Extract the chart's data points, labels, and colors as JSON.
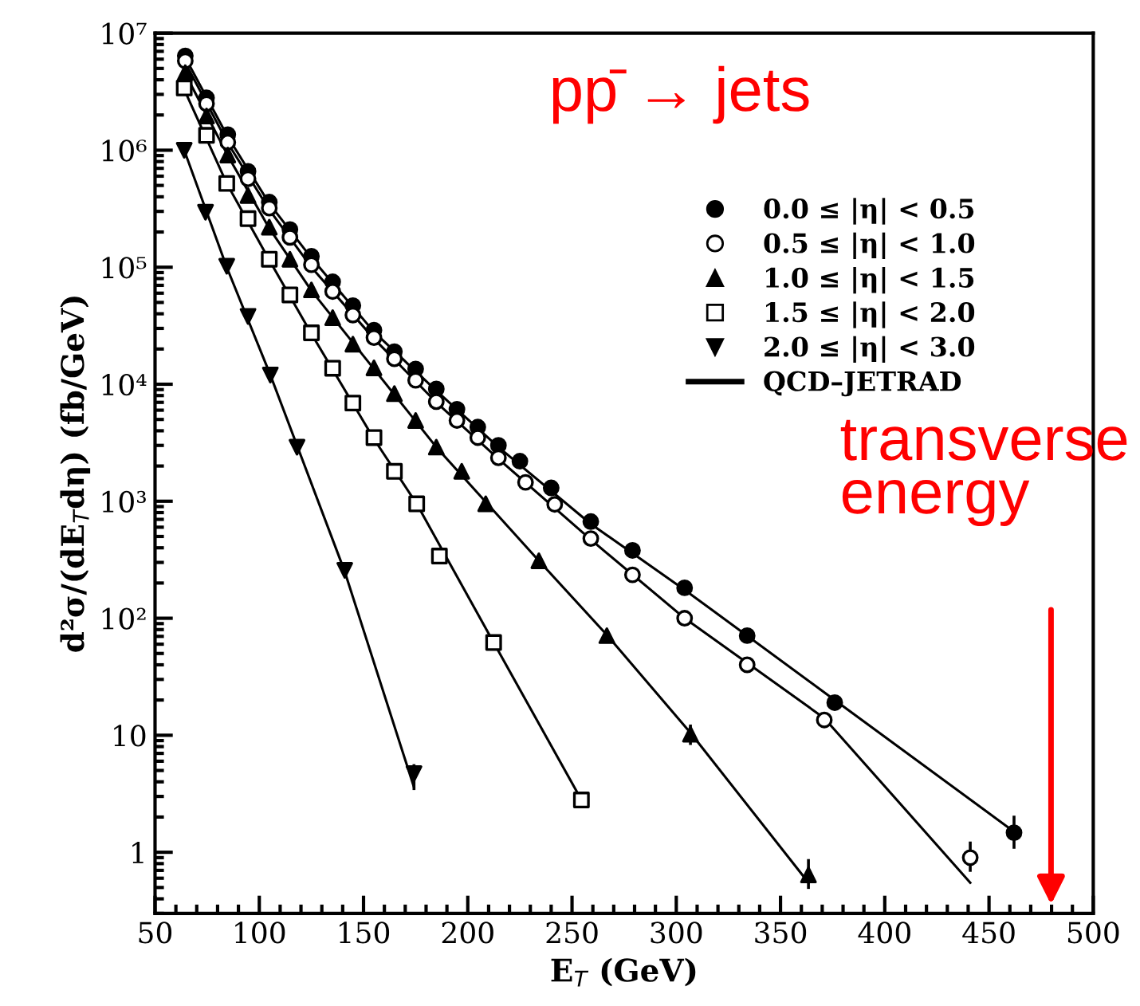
{
  "chart_data": {
    "type": "scatter",
    "xlabel": "E$_{T}$ (GeV)",
    "ylabel": "d²σ/(dE$_{T}$dη) (fb/GeV)",
    "log": "y",
    "grid": false,
    "legend": "top right",
    "xlim": [
      50,
      500
    ],
    "xticks": [
      50,
      100,
      150,
      200,
      250,
      300,
      350,
      400,
      450,
      500
    ],
    "ylim": [
      0.3,
      10000000
    ],
    "yticks": [
      1,
      10,
      {
        "value": 100,
        "label": "10²"
      },
      {
        "value": 1000,
        "label": "10³"
      },
      {
        "value": 10000,
        "label": "10⁴"
      },
      {
        "value": 100000,
        "label": "10⁵"
      },
      {
        "value": 1000000,
        "label": "10⁶"
      },
      {
        "value": 10000000,
        "label": "10⁷"
      }
    ],
    "annotations": [
      "pp̄ → jets",
      "transverse energy"
    ],
    "series": [
      {
        "name": "0.0 ≤ |η| < 0.5",
        "marker": "circle",
        "color": "#000000",
        "x": [
          64.5,
          74.7,
          84.9,
          94.6,
          104.8,
          114.7,
          125,
          135.2,
          144.9,
          155,
          164.8,
          175,
          184.9,
          194.8,
          204.8,
          214.7,
          225,
          240,
          259,
          279,
          304,
          334,
          376,
          462
        ],
        "values": [
          6400000,
          2800000,
          1360000,
          660000,
          360000,
          210000,
          124000,
          75000,
          47000,
          29000,
          19000,
          13500,
          9100,
          6100,
          4300,
          3000,
          2200,
          1300,
          670,
          380,
          182,
          71,
          19,
          1.47
        ],
        "errors": [
          null,
          null,
          null,
          null,
          null,
          null,
          null,
          null,
          null,
          null,
          null,
          null,
          null,
          null,
          null,
          null,
          null,
          null,
          null,
          null,
          null,
          null,
          null,
          [
            1.1,
            2.0
          ]
        ]
      },
      {
        "name": "0.5 ≤ |η| < 1.0",
        "marker": "circle-open",
        "color": "#000000",
        "x": [
          64.5,
          74.7,
          84.9,
          94.6,
          104.8,
          114.7,
          125,
          135.2,
          144.9,
          155,
          164.8,
          175,
          184.9,
          194.8,
          204.8,
          214.7,
          227.7,
          241.7,
          259,
          279,
          304,
          334,
          371,
          441
        ],
        "values": [
          5800000,
          2500000,
          1170000,
          570000,
          320000,
          180000,
          105000,
          62000,
          39000,
          25000,
          16500,
          10800,
          7100,
          4900,
          3500,
          2350,
          1450,
          940,
          480,
          235,
          100,
          40,
          13.5,
          0.9
        ],
        "errors": [
          null,
          null,
          null,
          null,
          null,
          null,
          null,
          null,
          null,
          null,
          null,
          null,
          null,
          null,
          null,
          null,
          null,
          null,
          null,
          null,
          null,
          null,
          null,
          [
            0.7,
            1.2
          ]
        ]
      },
      {
        "name": "1.0 ≤ |η| < 1.5",
        "marker": "triangle",
        "color": "#000000",
        "x": [
          64.5,
          74.7,
          84.9,
          94.6,
          104.8,
          114.7,
          125,
          135.2,
          144.9,
          155,
          164.8,
          175,
          184.9,
          197.1,
          208.6,
          234.1,
          266.7,
          306.8,
          363.4
        ],
        "values": [
          4600000,
          1960000,
          910000,
          410000,
          220000,
          117000,
          64000,
          37000,
          22000,
          13800,
          8300,
          4900,
          2900,
          1800,
          950,
          310,
          71,
          10.2,
          0.64
        ],
        "errors": [
          null,
          null,
          null,
          null,
          null,
          null,
          null,
          null,
          null,
          null,
          null,
          null,
          null,
          null,
          null,
          null,
          null,
          [
            8.5,
            12
          ],
          [
            0.5,
            0.85
          ]
        ]
      },
      {
        "name": "1.5 ≤ |η| < 2.0",
        "marker": "square-open",
        "color": "#000000",
        "x": [
          64,
          74.7,
          84.4,
          94.6,
          104.8,
          114.7,
          125,
          135.2,
          144.9,
          155,
          164.8,
          175.5,
          186.4,
          212.4,
          254.5
        ],
        "values": [
          3400000,
          1340000,
          520000,
          260000,
          117000,
          58000,
          27500,
          13700,
          6900,
          3500,
          1800,
          950,
          340,
          62,
          2.8
        ]
      },
      {
        "name": "2.0 ≤ |η| < 3.0",
        "marker": "triangle-down",
        "color": "#000000",
        "x": [
          64,
          74.2,
          84.4,
          94.6,
          105.3,
          118.1,
          141,
          174.2
        ],
        "values": [
          1000000,
          295000,
          102000,
          38000,
          12000,
          2900,
          257,
          4.7
        ],
        "errors": [
          null,
          null,
          null,
          null,
          null,
          null,
          null,
          [
            3.5,
            5.5
          ]
        ]
      },
      {
        "name": "QCD–JETRAD",
        "type": "line",
        "color": "#000000",
        "x": [
          64.5,
          84.9,
          104.8,
          125,
          155,
          184.9,
          214.7,
          259,
          304,
          376,
          462
        ],
        "values": [
          6200000,
          1300000,
          350000,
          120000,
          28000,
          8800,
          2900,
          640,
          175,
          20,
          1.5
        ]
      },
      {
        "type": "line",
        "color": "#000000",
        "x": [
          64.5,
          84.9,
          104.8,
          125,
          155,
          184.9,
          214.7,
          259,
          304,
          371,
          441
        ],
        "values": [
          5600000,
          1150000,
          310000,
          100000,
          24500,
          7000,
          2300,
          470,
          100,
          14,
          0.55
        ]
      },
      {
        "type": "line",
        "color": "#000000",
        "x": [
          64.5,
          84.9,
          104.8,
          125,
          155,
          184.9,
          234.1,
          266.7,
          306.8,
          363.4
        ],
        "values": [
          4500000,
          900000,
          215000,
          63000,
          13500,
          2900,
          310,
          72,
          10.5,
          0.55
        ]
      },
      {
        "type": "line",
        "color": "#000000",
        "x": [
          64,
          84.4,
          104.8,
          125,
          155,
          175.5,
          212.4,
          254.5
        ],
        "values": [
          3300000,
          520000,
          115000,
          27000,
          3400,
          950,
          62,
          2.8
        ]
      },
      {
        "type": "line",
        "color": "#000000",
        "x": [
          64,
          84.4,
          105.3,
          141,
          174.2
        ],
        "values": [
          1000000,
          100000,
          12000,
          250,
          3.6
        ]
      }
    ]
  }
}
